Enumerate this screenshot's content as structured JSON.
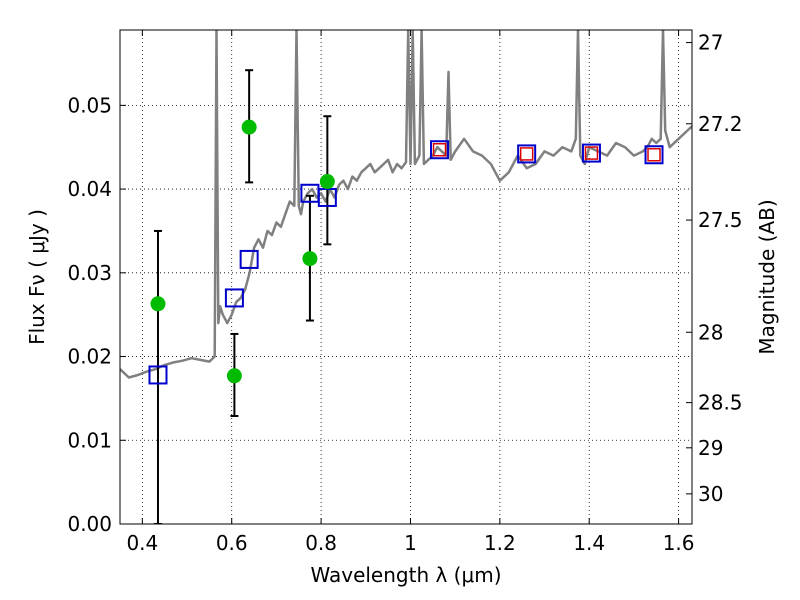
{
  "chart_data": {
    "type": "scatter",
    "xlabel": "Wavelength  λ (μm)",
    "ylabel": "Flux  Fν  ( μJy )",
    "ylabel_right": "Magnitude (AB)",
    "xlim": [
      0.35,
      1.63
    ],
    "ylim": [
      0.0,
      0.059
    ],
    "grid": true,
    "x_ticks": [
      0.4,
      0.6,
      0.8,
      1.0,
      1.2,
      1.4,
      1.6
    ],
    "x_tick_labels": [
      "0.4",
      "0.6",
      "0.8",
      "1",
      "1.2",
      "1.4",
      "1.6"
    ],
    "y_ticks": [
      0.0,
      0.01,
      0.02,
      0.03,
      0.04,
      0.05
    ],
    "y_tick_labels": [
      "0.00",
      "0.01",
      "0.02",
      "0.03",
      "0.04",
      "0.05"
    ],
    "right_ticks": [
      {
        "label": "27",
        "flux": 0.0575
      },
      {
        "label": "27.2",
        "flux": 0.0478
      },
      {
        "label": "27.5",
        "flux": 0.0363
      },
      {
        "label": "28",
        "flux": 0.0229
      },
      {
        "label": "28.5",
        "flux": 0.0145
      },
      {
        "label": "29",
        "flux": 0.0091
      },
      {
        "label": "30",
        "flux": 0.0036
      }
    ],
    "colors": {
      "model": "#808080",
      "observed": "#00bb00",
      "synthetic": "#0000cc",
      "synthetic_inner": "#dd0000",
      "errorbar": "#000000"
    },
    "series": [
      {
        "name": "model spectrum",
        "kind": "line",
        "x": [
          0.35,
          0.37,
          0.39,
          0.41,
          0.43,
          0.45,
          0.47,
          0.49,
          0.51,
          0.53,
          0.55,
          0.562,
          0.566,
          0.57,
          0.574,
          0.58,
          0.59,
          0.6,
          0.61,
          0.62,
          0.63,
          0.64,
          0.65,
          0.66,
          0.67,
          0.68,
          0.69,
          0.7,
          0.71,
          0.72,
          0.73,
          0.74,
          0.745,
          0.75,
          0.755,
          0.76,
          0.77,
          0.78,
          0.79,
          0.8,
          0.81,
          0.82,
          0.83,
          0.84,
          0.85,
          0.86,
          0.87,
          0.88,
          0.89,
          0.9,
          0.91,
          0.92,
          0.93,
          0.94,
          0.95,
          0.96,
          0.97,
          0.98,
          0.99,
          0.995,
          1.0,
          1.005,
          1.01,
          1.02,
          1.025,
          1.03,
          1.04,
          1.05,
          1.06,
          1.07,
          1.08,
          1.085,
          1.09,
          1.1,
          1.12,
          1.14,
          1.16,
          1.18,
          1.2,
          1.22,
          1.24,
          1.26,
          1.28,
          1.3,
          1.32,
          1.34,
          1.36,
          1.37,
          1.375,
          1.38,
          1.39,
          1.4,
          1.42,
          1.44,
          1.46,
          1.48,
          1.5,
          1.52,
          1.53,
          1.54,
          1.55,
          1.56,
          1.565,
          1.57,
          1.58,
          1.6,
          1.62,
          1.63
        ],
        "y": [
          0.0185,
          0.0175,
          0.0178,
          0.0182,
          0.0185,
          0.019,
          0.0193,
          0.0195,
          0.0198,
          0.0196,
          0.0194,
          0.02,
          0.059,
          0.024,
          0.026,
          0.025,
          0.024,
          0.025,
          0.0265,
          0.027,
          0.028,
          0.03,
          0.033,
          0.034,
          0.033,
          0.035,
          0.0345,
          0.036,
          0.0355,
          0.037,
          0.0385,
          0.038,
          0.059,
          0.038,
          0.037,
          0.0385,
          0.0395,
          0.04,
          0.039,
          0.0395,
          0.0385,
          0.04,
          0.039,
          0.0405,
          0.041,
          0.04,
          0.0415,
          0.041,
          0.042,
          0.0425,
          0.043,
          0.042,
          0.0425,
          0.043,
          0.0435,
          0.042,
          0.043,
          0.0425,
          0.0432,
          0.059,
          0.043,
          0.059,
          0.043,
          0.044,
          0.059,
          0.043,
          0.0435,
          0.044,
          0.045,
          0.0445,
          0.044,
          0.054,
          0.0435,
          0.0445,
          0.046,
          0.0445,
          0.044,
          0.043,
          0.041,
          0.042,
          0.044,
          0.0425,
          0.043,
          0.0445,
          0.044,
          0.045,
          0.0445,
          0.046,
          0.059,
          0.044,
          0.043,
          0.045,
          0.0445,
          0.044,
          0.0455,
          0.045,
          0.044,
          0.0445,
          0.045,
          0.046,
          0.0455,
          0.046,
          0.059,
          0.047,
          0.045,
          0.046,
          0.047,
          0.0475
        ]
      },
      {
        "name": "observed photometry",
        "kind": "scatter-errorbar",
        "x": [
          0.435,
          0.606,
          0.639,
          0.775,
          0.814
        ],
        "y": [
          0.0263,
          0.0177,
          0.0474,
          0.0317,
          0.0409
        ],
        "yerr_low": [
          0.0263,
          0.0048,
          0.0066,
          0.0074,
          0.0075
        ],
        "yerr_high": [
          0.0087,
          0.005,
          0.0068,
          0.0075,
          0.0078
        ]
      },
      {
        "name": "synthetic model photometry",
        "kind": "scatter",
        "x": [
          0.435,
          0.606,
          0.639,
          0.775,
          0.814,
          1.065,
          1.26,
          1.405,
          1.545
        ],
        "y": [
          0.0178,
          0.027,
          0.0316,
          0.0395,
          0.039,
          0.0447,
          0.0442,
          0.0443,
          0.0441
        ]
      },
      {
        "name": "synthetic model photometry (NIR)",
        "kind": "scatter-inner",
        "x": [
          1.065,
          1.26,
          1.405,
          1.545
        ],
        "y": [
          0.0447,
          0.0442,
          0.0443,
          0.0441
        ]
      }
    ]
  }
}
